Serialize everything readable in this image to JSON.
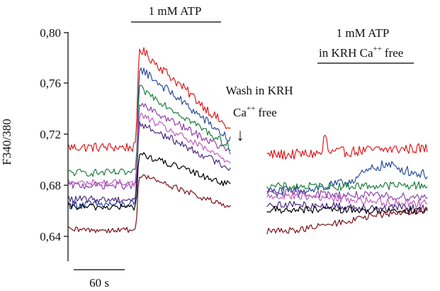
{
  "chart_data": {
    "type": "line",
    "title": "",
    "xlabel": "",
    "ylabel": "F340/380",
    "ylim": [
      0.62,
      0.8
    ],
    "yticks": [
      "0,80",
      "0,76",
      "0,72",
      "0,68",
      "0,64"
    ],
    "ytick_values": [
      0.8,
      0.76,
      0.72,
      0.68,
      0.64
    ],
    "x_unit": "s",
    "scale_bar": {
      "value": 60,
      "label": "60 s"
    },
    "annotations": {
      "atp_label": "1 mM ATP",
      "wash_line1": "Wash in KRH",
      "wash_ca": "Ca",
      "wash_superscript": "++",
      "wash_free": "free",
      "second_atp_line1": "1 mM ATP",
      "second_atp_line2_pre": "in KRH Ca",
      "second_atp_superscript": "++",
      "second_atp_line2_post": "free",
      "wash_arrow": "↓"
    },
    "series": [
      {
        "color": "#e31a1c",
        "baseline": 0.71,
        "peak": 0.788,
        "end": 0.723,
        "recovery": 0.704,
        "late": 0.709,
        "noise": 0.0032
      },
      {
        "color": "#2c4d9c",
        "baseline": 0.665,
        "peak": 0.773,
        "end": 0.715,
        "recovery": 0.675,
        "late": 0.688,
        "noise": 0.003
      },
      {
        "color": "#1b7f3b",
        "baseline": 0.69,
        "peak": 0.757,
        "end": 0.71,
        "recovery": 0.679,
        "late": 0.68,
        "noise": 0.0025
      },
      {
        "color": "#8e44ad",
        "baseline": 0.68,
        "peak": 0.744,
        "end": 0.706,
        "recovery": 0.674,
        "late": 0.671,
        "noise": 0.0025
      },
      {
        "color": "#c060c0",
        "baseline": 0.682,
        "peak": 0.736,
        "end": 0.698,
        "recovery": 0.672,
        "late": 0.666,
        "noise": 0.0024
      },
      {
        "color": "#4b2c84",
        "baseline": 0.669,
        "peak": 0.729,
        "end": 0.693,
        "recovery": 0.665,
        "late": 0.662,
        "noise": 0.0024
      },
      {
        "color": "#000000",
        "baseline": 0.663,
        "peak": 0.705,
        "end": 0.68,
        "recovery": 0.661,
        "late": 0.66,
        "noise": 0.0022
      },
      {
        "color": "#7b1218",
        "baseline": 0.645,
        "peak": 0.689,
        "end": 0.662,
        "recovery": 0.644,
        "late": 0.66,
        "noise": 0.002
      }
    ]
  }
}
